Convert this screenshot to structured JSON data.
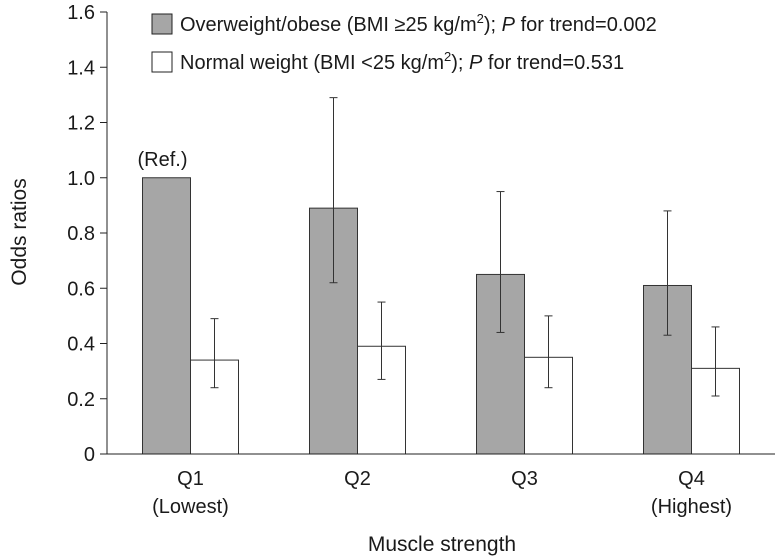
{
  "chart_data": {
    "type": "bar",
    "xlabel": "Muscle strength",
    "ylabel": "Odds ratios",
    "ylim": [
      0,
      1.6
    ],
    "yticks": [
      0,
      0.2,
      0.4,
      0.6,
      0.8,
      1.0,
      1.2,
      1.4,
      1.6
    ],
    "ytick_labels": [
      "0",
      "0.2",
      "0.4",
      "0.6",
      "0.8",
      "1.0",
      "1.2",
      "1.4",
      "1.6"
    ],
    "grid": false,
    "legend_position": "top",
    "categories": [
      {
        "label": "Q1",
        "sublabel": "(Lowest)"
      },
      {
        "label": "Q2",
        "sublabel": ""
      },
      {
        "label": "Q3",
        "sublabel": ""
      },
      {
        "label": "Q4",
        "sublabel": "(Highest)"
      }
    ],
    "series": [
      {
        "name": "Overweight/obese (BMI ≥25 kg/m2); P for trend=0.002",
        "legend_text": "Overweight/obese (BMI ≥25 kg/m",
        "legend_sup": "2",
        "legend_after": "); ",
        "legend_p": "P",
        "legend_trend": " for trend=0.002",
        "color": "#a6a6a6",
        "values": [
          1.0,
          0.89,
          0.65,
          0.61
        ],
        "err_low": [
          null,
          0.62,
          0.44,
          0.43
        ],
        "err_high": [
          null,
          1.29,
          0.95,
          0.88
        ]
      },
      {
        "name": "Normal weight (BMI <25 kg/m2); P for trend=0.531",
        "legend_text": "Normal weight (BMI <25 kg/m",
        "legend_sup": "2",
        "legend_after": "); ",
        "legend_p": "P",
        "legend_trend": " for trend=0.531",
        "color": "#ffffff",
        "values": [
          0.34,
          0.39,
          0.35,
          0.31
        ],
        "err_low": [
          0.24,
          0.27,
          0.24,
          0.21
        ],
        "err_high": [
          0.49,
          0.55,
          0.5,
          0.46
        ]
      }
    ],
    "annotations": [
      {
        "text": "(Ref.)",
        "category_index": 0,
        "series_index": 0
      }
    ]
  }
}
